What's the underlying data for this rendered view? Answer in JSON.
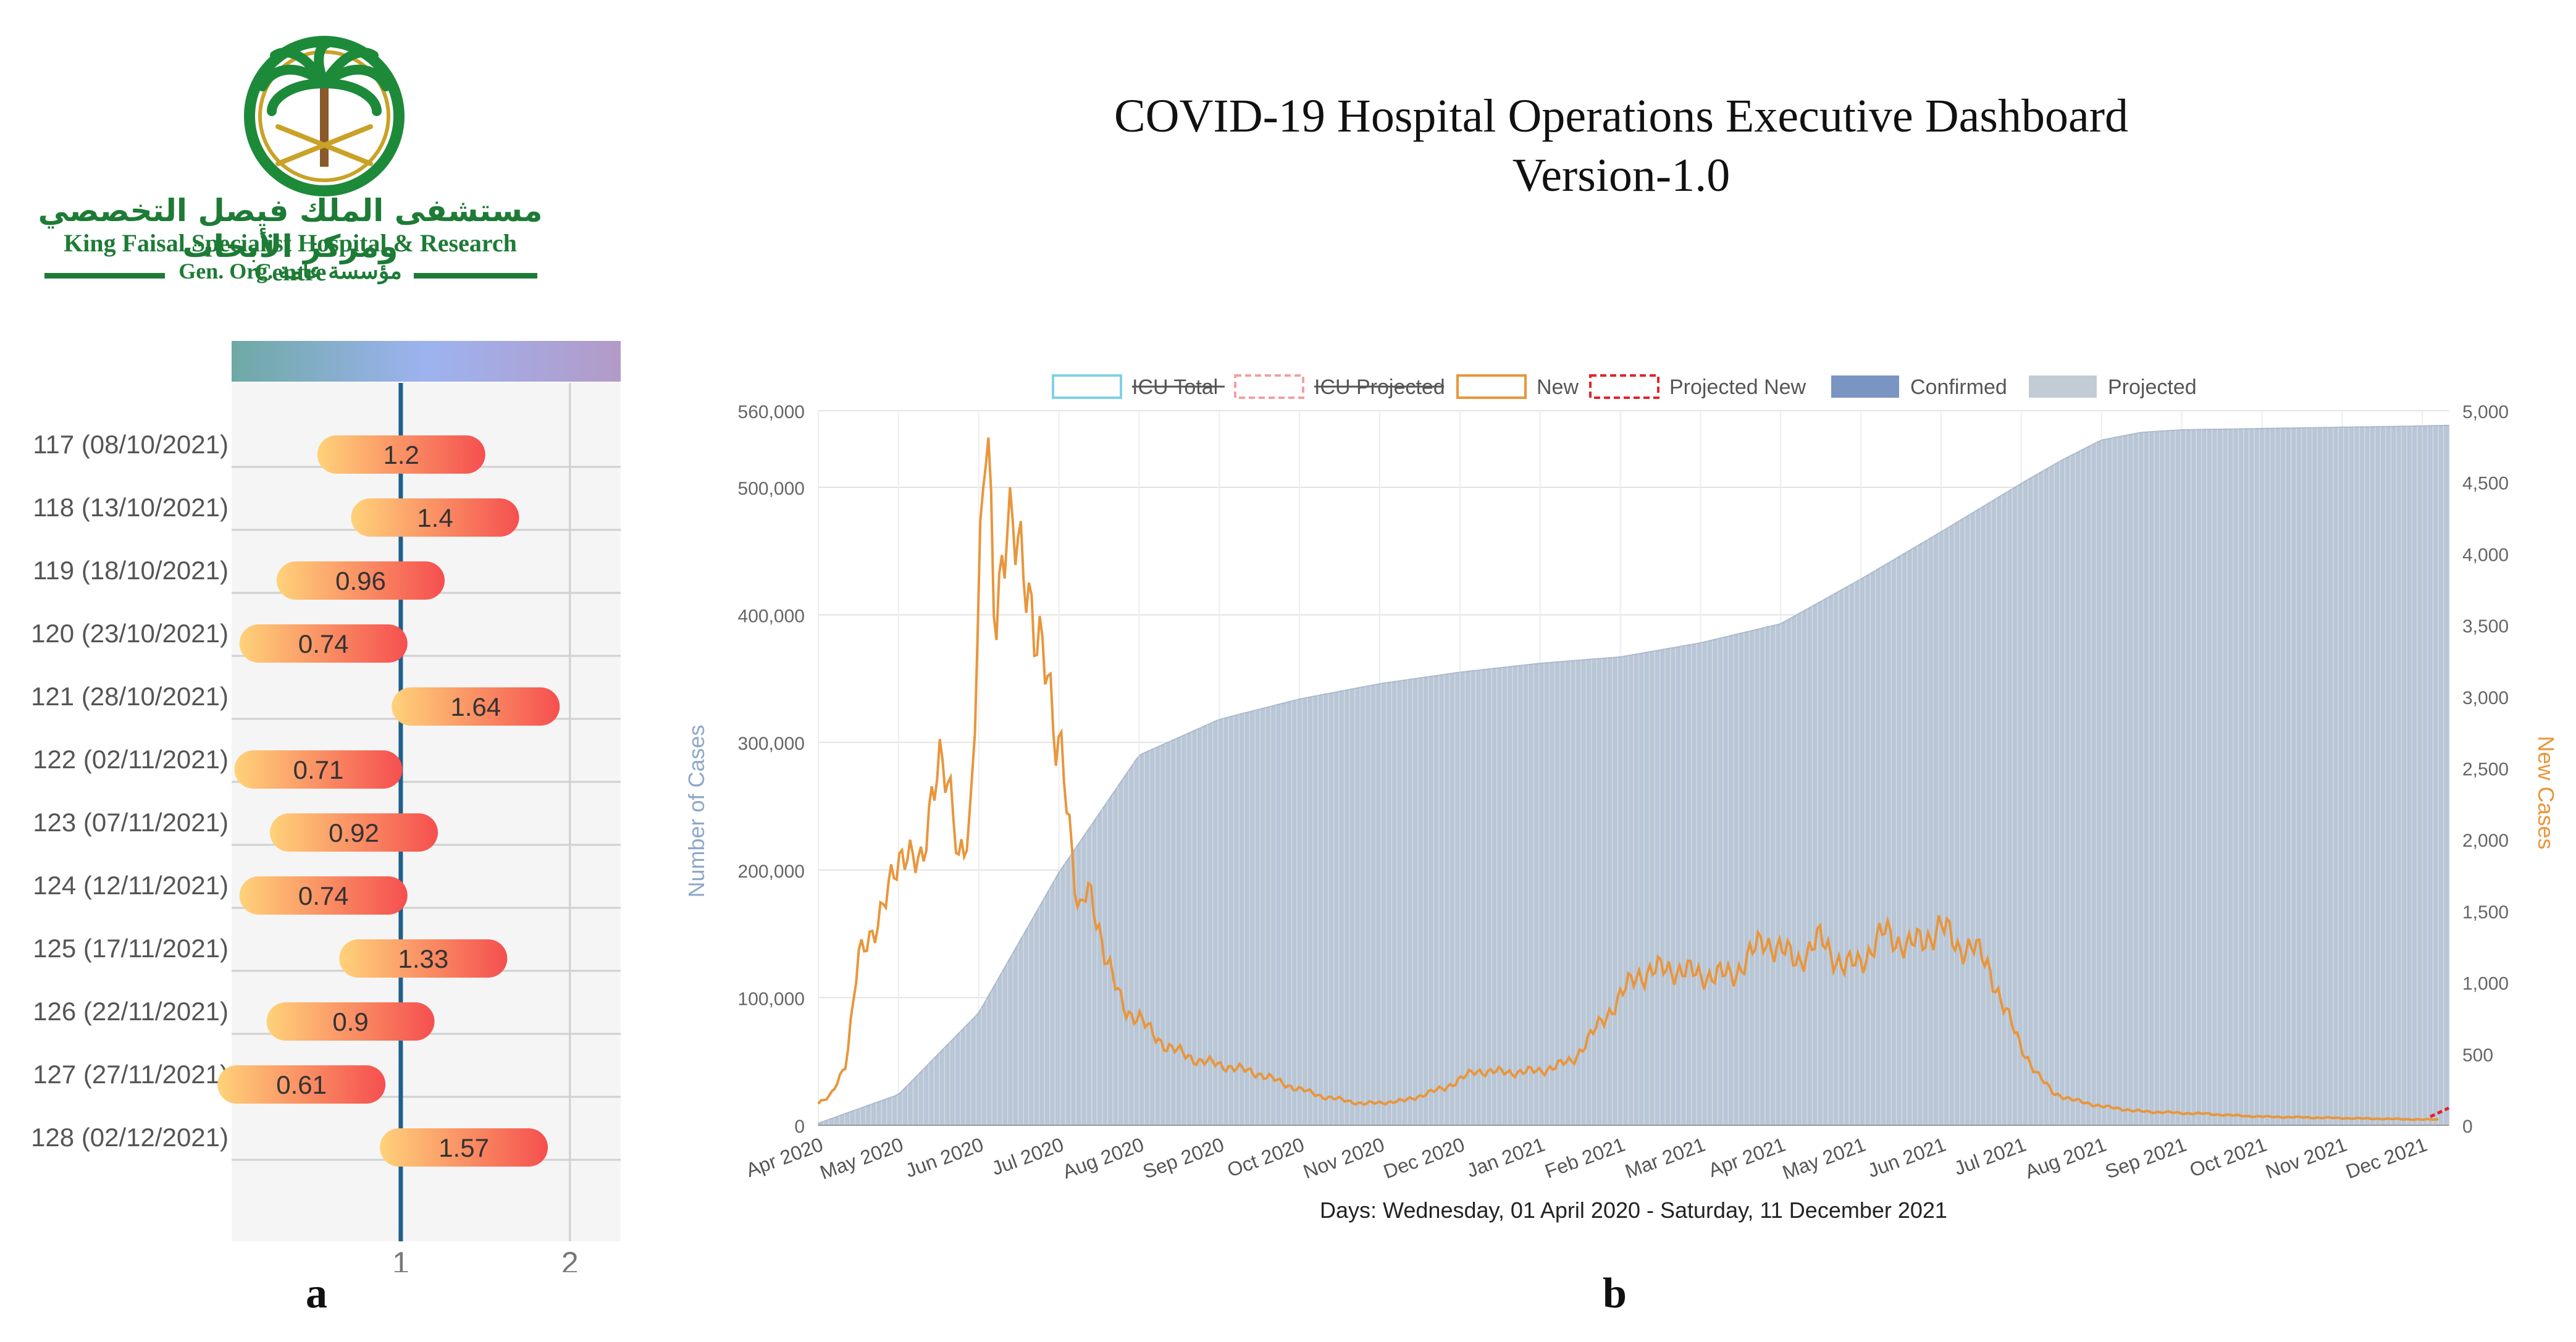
{
  "header": {
    "title_line1": "COVID-19 Hospital Operations Executive Dashboard",
    "title_line2": "Version-1.0"
  },
  "logo": {
    "arabic_name": "مستشفى الملك فيصل التخصصي ومركز الأبحاث",
    "english_name": "King Faisal Specialist Hospital & Research Centre",
    "org_line": "Gen. Org.  مؤسسة عامة"
  },
  "panels": {
    "a_label": "a",
    "b_label": "b"
  },
  "colors": {
    "confirmed": "#b9c6d6",
    "confirmed_legend": "#7b95c2",
    "projected": "#c3ccd4",
    "new_cases": "#e8963c",
    "projected_new": "#e2242b",
    "icu_total": "#7fd0e6",
    "icu_projected": "#f2a0a0",
    "rt_line": "#1f5f8b",
    "pill_start": "#ffd27a",
    "pill_end": "#f54f4f",
    "gradient_start": "#6ea9a5",
    "gradient_mid": "#9db3f0",
    "gradient_end": "#b39ac7"
  },
  "chart_data": [
    {
      "type": "bar",
      "orientation": "horizontal",
      "reference_value": 1,
      "categories": [
        "117 (08/10/2021)",
        "118 (13/10/2021)",
        "119 (18/10/2021)",
        "120 (23/10/2021)",
        "121 (28/10/2021)",
        "122 (02/11/2021)",
        "123 (07/11/2021)",
        "124 (12/11/2021)",
        "125 (17/11/2021)",
        "126 (22/11/2021)",
        "127 (27/11/2021)",
        "128 (02/12/2021)"
      ],
      "values": [
        1.2,
        1.4,
        0.96,
        0.74,
        1.64,
        0.71,
        0.92,
        0.74,
        1.33,
        0.9,
        0.61,
        1.57
      ],
      "value_labels": [
        "1.2",
        "1.4",
        "0.96",
        "0.74",
        "1.64",
        "0.71",
        "0.92",
        "0.74",
        "1.33",
        "0.9",
        "0.61",
        "1.57"
      ],
      "xlim": [
        0,
        2.3
      ],
      "xticks": [
        1,
        2
      ],
      "xtick_labels": [
        "1",
        "2"
      ],
      "grid": true
    },
    {
      "type": "area",
      "title": "",
      "xlabel": "Days: Wednesday, 01 April 2020 - Saturday, 11 December 2021",
      "ylabel": "Number of Cases",
      "y2label": "New Cases",
      "x_tick_labels": [
        "Apr 2020",
        "May 2020",
        "Jun 2020",
        "Jul 2020",
        "Aug 2020",
        "Sep 2020",
        "Oct 2020",
        "Nov 2020",
        "Dec 2020",
        "Jan 2021",
        "Feb 2021",
        "Mar 2021",
        "Apr 2021",
        "May 2021",
        "Jun 2021",
        "Jul 2021",
        "Aug 2021",
        "Sep 2021",
        "Oct 2021",
        "Nov 2021",
        "Dec 2021"
      ],
      "y_ticks": [
        "0",
        "100,000",
        "200,000",
        "300,000",
        "400,000",
        "500,000",
        "560,000"
      ],
      "y2_ticks": [
        "0",
        "500",
        "1,000",
        "1,500",
        "2,000",
        "2,500",
        "3,000",
        "3,500",
        "4,000",
        "4,500",
        "5,000"
      ],
      "ylim": [
        0,
        560000
      ],
      "y2lim": [
        0,
        5000
      ],
      "legend": {
        "position": "top",
        "items": [
          {
            "label": "ICU Total",
            "struck": true
          },
          {
            "label": "ICU Projected",
            "struck": true
          },
          {
            "label": "New",
            "struck": false
          },
          {
            "label": "Projected New",
            "struck": false
          },
          {
            "label": "Confirmed",
            "struck": false
          },
          {
            "label": "Projected",
            "struck": false
          }
        ]
      },
      "series": [
        {
          "name": "Confirmed",
          "axis": "left",
          "months": [
            0,
            1,
            2,
            3,
            4,
            5,
            6,
            7,
            8,
            9,
            10,
            11,
            12,
            13,
            14,
            15,
            15.5,
            16,
            16.5,
            17,
            18,
            19,
            20,
            20.33
          ],
          "values": [
            1500,
            24000,
            88000,
            198000,
            290000,
            318000,
            334000,
            346000,
            355000,
            362000,
            367000,
            378000,
            393000,
            428000,
            465000,
            503000,
            521000,
            537000,
            543000,
            545000,
            546000,
            547000,
            548000,
            548500
          ]
        },
        {
          "name": "New",
          "axis": "right",
          "months": [
            0,
            0.15,
            0.35,
            0.5,
            0.7,
            0.9,
            1.1,
            1.3,
            1.5,
            1.6,
            1.75,
            1.9,
            2.0,
            2.1,
            2.2,
            2.35,
            2.5,
            2.65,
            2.8,
            2.95,
            3.05,
            3.15,
            3.25,
            3.35,
            3.45,
            3.55,
            3.65,
            3.75,
            3.85,
            4.0,
            4.15,
            4.35,
            4.55,
            4.75,
            4.95,
            5.2,
            5.5,
            5.9,
            6.3,
            6.8,
            7.3,
            7.8,
            8.2,
            8.6,
            9.0,
            9.4,
            9.8,
            10.2,
            10.6,
            11.0,
            11.4,
            11.8,
            12.2,
            12.5,
            12.8,
            13.0,
            13.3,
            13.6,
            13.8,
            14.0,
            14.2,
            14.4,
            14.6,
            14.8,
            15.0,
            15.2,
            15.4,
            15.6,
            15.8,
            16.0,
            16.2,
            16.4,
            16.6,
            16.8,
            17.0,
            17.3,
            17.6,
            18.0,
            18.5,
            19.0,
            19.5,
            20.0,
            20.2
          ],
          "values": [
            150,
            200,
            450,
            1150,
            1400,
            1650,
            2000,
            1750,
            2700,
            2450,
            1800,
            2200,
            3700,
            4850,
            3500,
            4350,
            3900,
            3700,
            3350,
            2600,
            2700,
            2000,
            1400,
            1650,
            1550,
            1250,
            1050,
            900,
            800,
            750,
            650,
            550,
            500,
            450,
            430,
            400,
            360,
            270,
            200,
            150,
            170,
            260,
            380,
            370,
            380,
            450,
            750,
            1050,
            1100,
            1050,
            1050,
            1300,
            1150,
            1300,
            1100,
            1150,
            1350,
            1250,
            1300,
            1400,
            1250,
            1250,
            1100,
            800,
            550,
            350,
            230,
            180,
            160,
            130,
            120,
            100,
            95,
            90,
            85,
            80,
            70,
            60,
            55,
            50,
            45,
            40,
            40
          ]
        },
        {
          "name": "Projected New",
          "axis": "right",
          "months": [
            20.1,
            20.33
          ],
          "values": [
            60,
            120
          ]
        }
      ]
    }
  ]
}
